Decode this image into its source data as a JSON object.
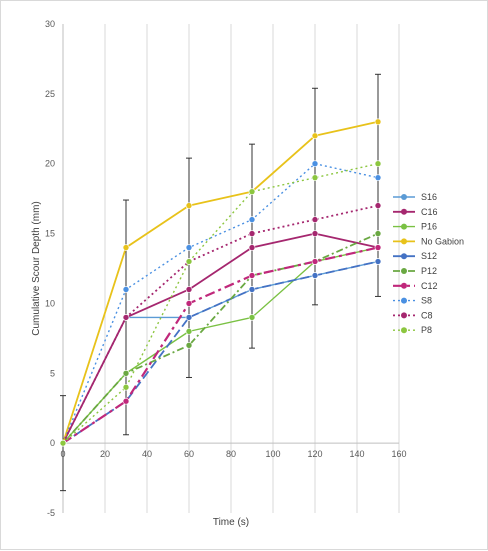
{
  "chart_data": {
    "type": "line",
    "title": "",
    "xlabel": "Time (s)",
    "ylabel": "Cumulative Scour Depth (mm)",
    "xlim": [
      0,
      160
    ],
    "ylim": [
      -5,
      30
    ],
    "x_ticks": [
      "0",
      "20",
      "40",
      "60",
      "80",
      "100",
      "120",
      "140",
      "160"
    ],
    "y_ticks": [
      "-5",
      "0",
      "5",
      "10",
      "15",
      "20",
      "25",
      "30"
    ],
    "grid": "vertical",
    "legend_position": "right",
    "series": [
      {
        "name": "S16",
        "color": "#5b9bd5",
        "dash": "solid",
        "width": 1.4,
        "x": [
          0,
          30,
          60,
          90,
          120,
          150
        ],
        "y": [
          0,
          9,
          9,
          11,
          12,
          13
        ]
      },
      {
        "name": "C16",
        "color": "#a5276f",
        "dash": "solid",
        "width": 1.8,
        "x": [
          0,
          30,
          60,
          90,
          120,
          150
        ],
        "y": [
          0,
          9,
          11,
          14,
          15,
          14
        ]
      },
      {
        "name": "P16",
        "color": "#7ac143",
        "dash": "solid",
        "width": 1.4,
        "x": [
          0,
          30,
          60,
          90,
          120,
          150
        ],
        "y": [
          0,
          5,
          8,
          9,
          13,
          14
        ]
      },
      {
        "name": "No Gabion",
        "color": "#e8c21a",
        "dash": "solid",
        "width": 1.8,
        "x": [
          0,
          30,
          60,
          90,
          120,
          150
        ],
        "y": [
          0,
          14,
          17,
          18,
          22,
          23
        ]
      },
      {
        "name": "S12",
        "color": "#4472c4",
        "dash": "longdash",
        "width": 1.8,
        "x": [
          0,
          30,
          60,
          90,
          120,
          150
        ],
        "y": [
          0,
          3,
          9,
          11,
          12,
          13
        ]
      },
      {
        "name": "P12",
        "color": "#6aa842",
        "dash": "dashdot",
        "width": 1.8,
        "x": [
          0,
          30,
          60,
          90,
          120,
          150
        ],
        "y": [
          0,
          5,
          7,
          12,
          13,
          15
        ]
      },
      {
        "name": "C12",
        "color": "#c0287b",
        "dash": "longdashdot",
        "width": 2.2,
        "x": [
          0,
          30,
          60,
          90,
          120,
          150
        ],
        "y": [
          0,
          3,
          10,
          12,
          13,
          14
        ]
      },
      {
        "name": "S8",
        "color": "#4a90e2",
        "dash": "dot",
        "width": 1.4,
        "x": [
          0,
          30,
          60,
          90,
          120,
          150
        ],
        "y": [
          0,
          11,
          14,
          16,
          20,
          19
        ]
      },
      {
        "name": "C8",
        "color": "#a5276f",
        "dash": "dot",
        "width": 1.8,
        "x": [
          0,
          30,
          60,
          90,
          120,
          150
        ],
        "y": [
          0,
          9,
          13,
          15,
          16,
          17
        ]
      },
      {
        "name": "P8",
        "color": "#8cc63f",
        "dash": "dot",
        "width": 1.4,
        "x": [
          0,
          30,
          60,
          90,
          120,
          150
        ],
        "y": [
          0,
          4,
          13,
          18,
          19,
          20
        ]
      }
    ],
    "error_bars": [
      {
        "x": 0,
        "low": -3.4,
        "high": 3.4
      },
      {
        "x": 30,
        "low": 0.6,
        "high": 17.4
      },
      {
        "x": 60,
        "low": 4.7,
        "high": 20.4
      },
      {
        "x": 90,
        "low": 6.8,
        "high": 21.4
      },
      {
        "x": 120,
        "low": 9.9,
        "high": 25.4
      },
      {
        "x": 150,
        "low": 10.5,
        "high": 26.4
      }
    ]
  }
}
